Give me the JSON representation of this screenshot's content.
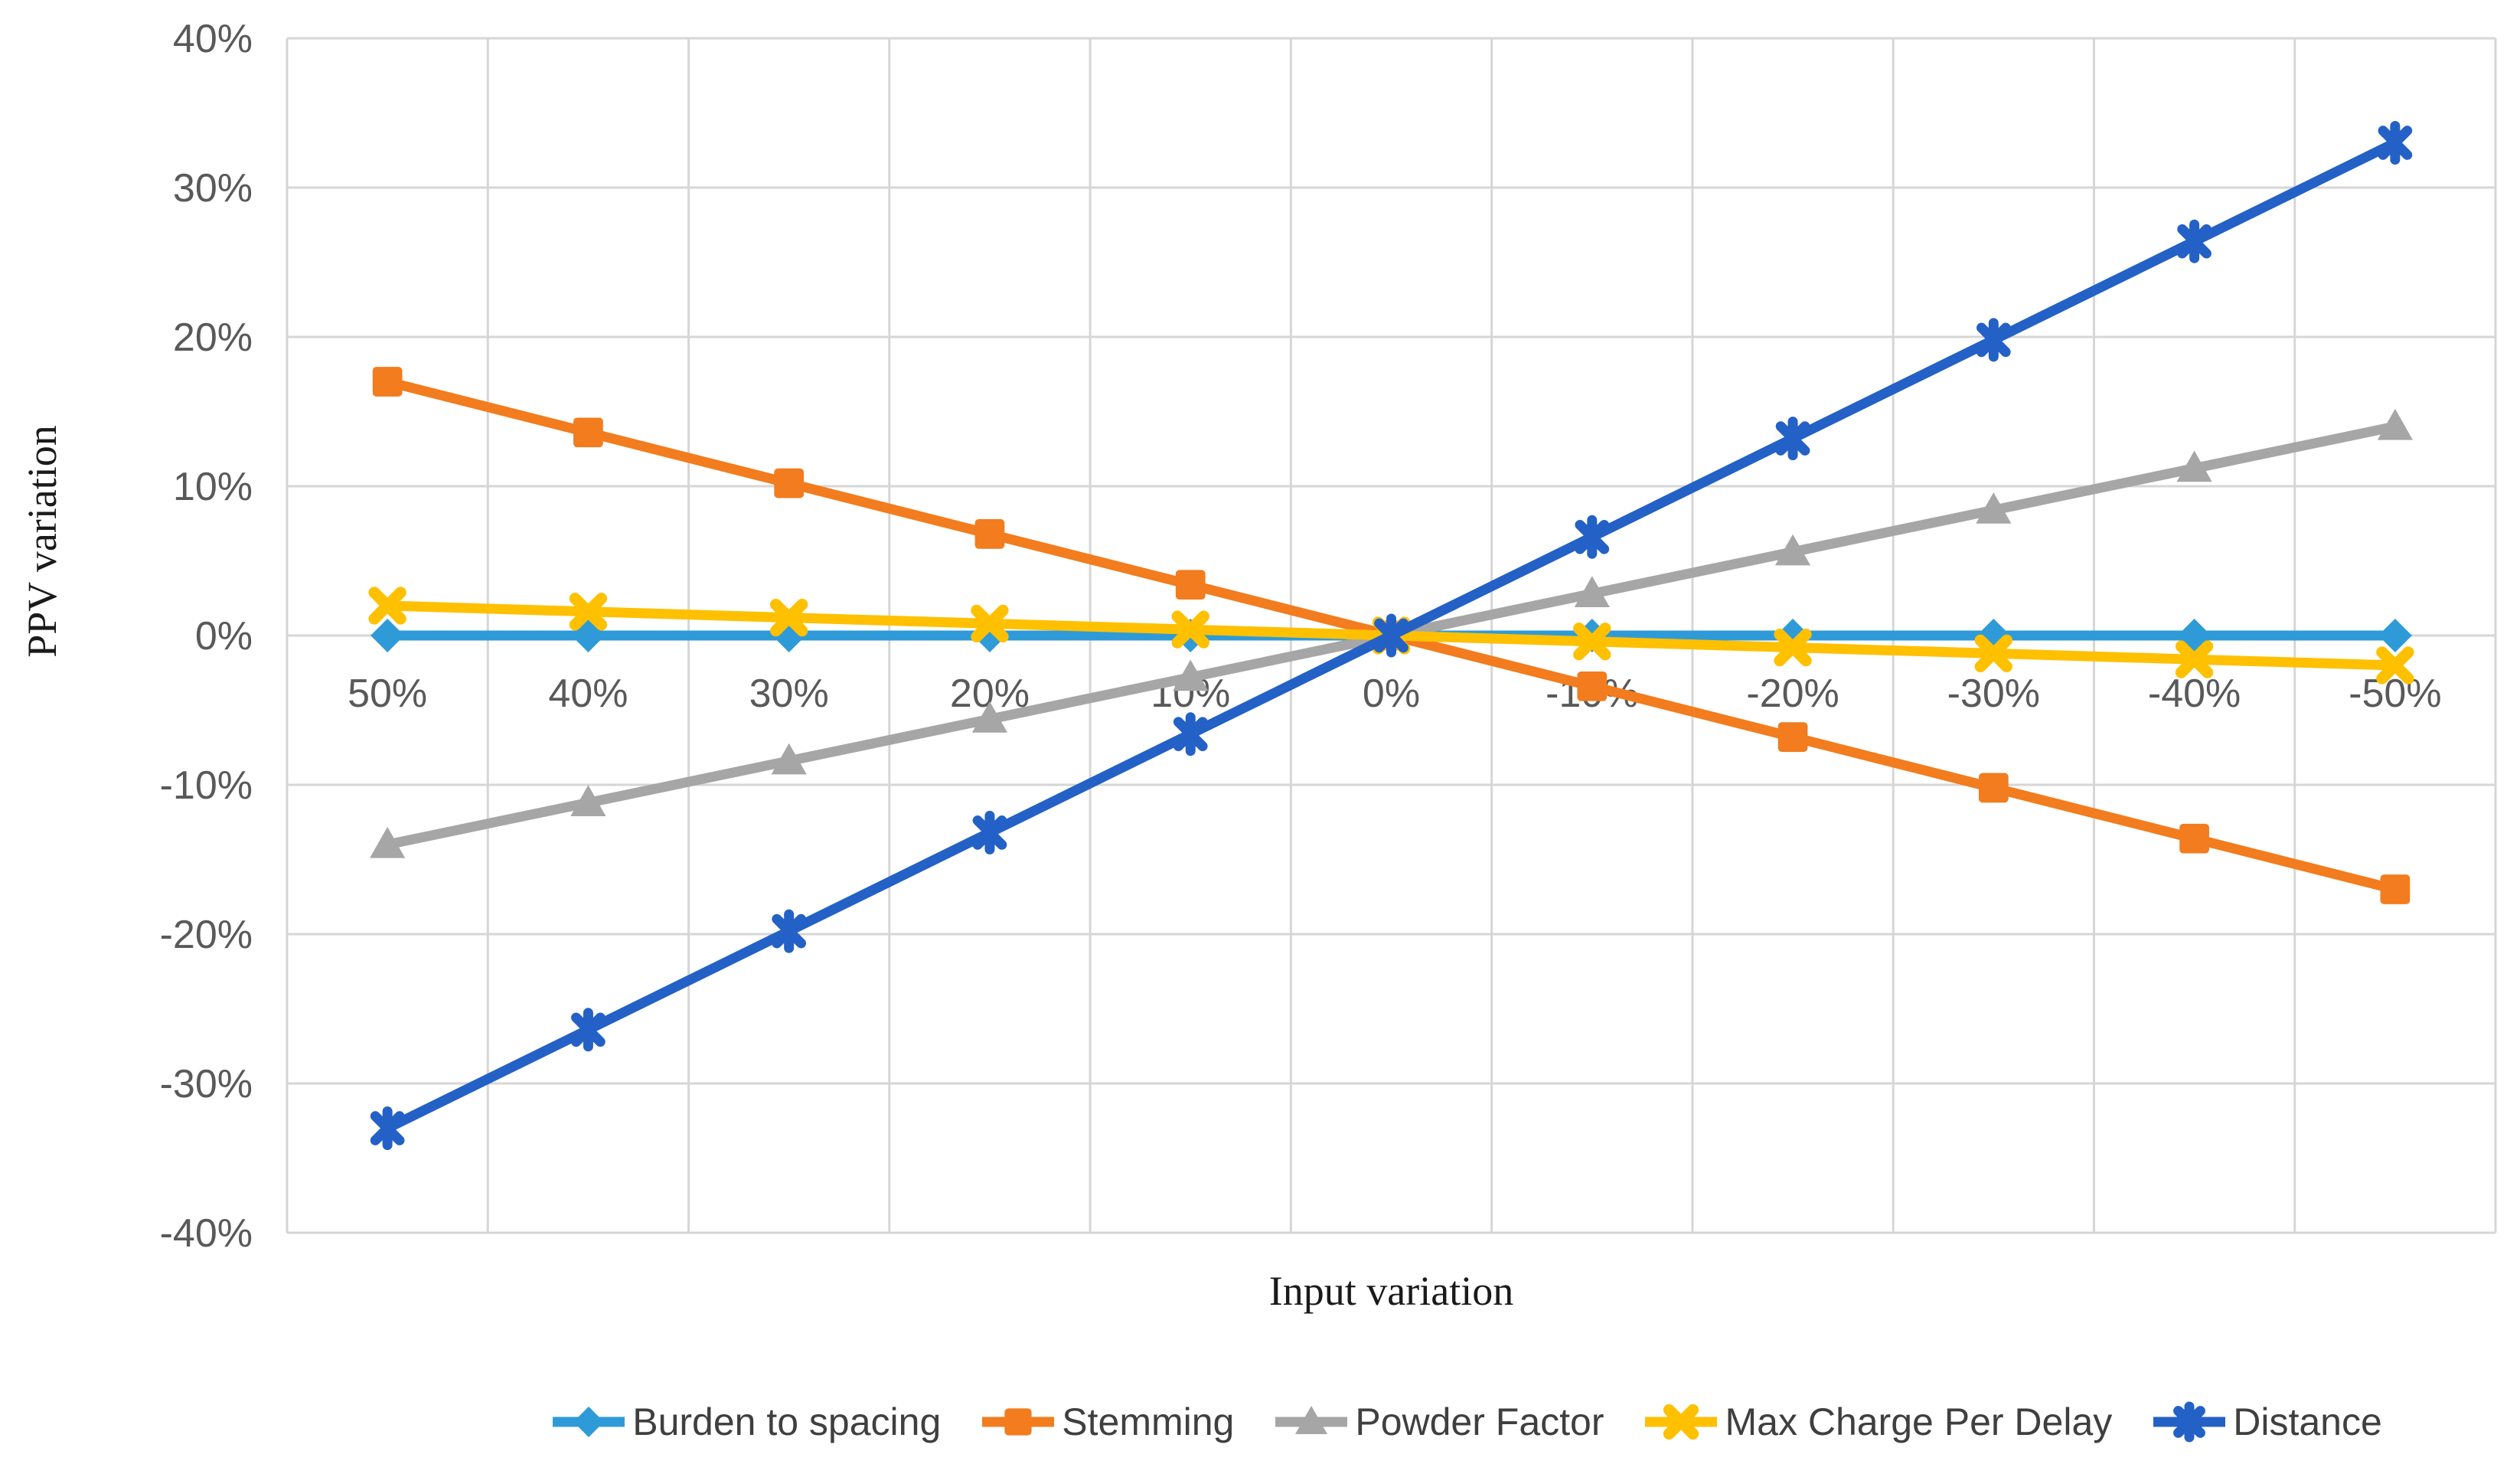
{
  "chart_data": {
    "type": "line",
    "title": "",
    "xlabel": "Input variation",
    "ylabel": "PPV variation",
    "categories": [
      "50%",
      "40%",
      "30%",
      "20%",
      "10%",
      "0%",
      "-10%",
      "-20%",
      "-30%",
      "-40%",
      "-50%"
    ],
    "y_ticks": [
      "40%",
      "30%",
      "20%",
      "10%",
      "0%",
      "-10%",
      "-20%",
      "-30%",
      "-40%"
    ],
    "ylim": [
      -40,
      40
    ],
    "y_tick_step": 10,
    "grid": true,
    "legend_position": "bottom",
    "series": [
      {
        "name": "Burden to spacing",
        "color": "#2E9BD8",
        "marker": "diamond",
        "values": [
          0,
          0,
          0,
          0,
          0,
          0,
          0,
          0,
          0,
          0,
          0
        ]
      },
      {
        "name": "Stemming",
        "color": "#F27C1E",
        "marker": "square",
        "values": [
          17,
          13.6,
          10.2,
          6.8,
          3.4,
          0,
          -3.4,
          -6.8,
          -10.2,
          -13.6,
          -17
        ]
      },
      {
        "name": "Powder Factor",
        "color": "#A6A6A6",
        "marker": "triangle",
        "values": [
          -14,
          -11.2,
          -8.4,
          -5.6,
          -2.8,
          0,
          2.8,
          5.6,
          8.4,
          11.2,
          14
        ]
      },
      {
        "name": "Max Charge Per Delay",
        "color": "#FFC000",
        "marker": "x",
        "values": [
          2,
          1.6,
          1.2,
          0.8,
          0.4,
          0,
          -0.4,
          -0.8,
          -1.2,
          -1.6,
          -2
        ]
      },
      {
        "name": "Distance",
        "color": "#2361C6",
        "marker": "star",
        "values": [
          -33,
          -26.4,
          -19.8,
          -13.2,
          -6.6,
          0,
          6.6,
          13.2,
          19.8,
          26.4,
          33
        ]
      }
    ],
    "colors": {
      "background": "#FFFFFF",
      "gridline": "#D6D6D6",
      "tick_label": "#595959",
      "axis_title": "#1A1A1A",
      "legend_text": "#3F3F3F"
    }
  }
}
